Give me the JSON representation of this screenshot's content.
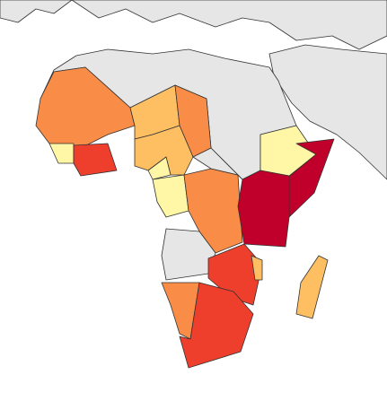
{
  "map": {
    "colors": {
      "sea": "#ffffff",
      "land": "#e6e6e6",
      "border": "#333333",
      "crimson": "#c0002b",
      "red": "#ee3e2c",
      "orange": "#f98c46",
      "light-orange": "#fdbf62",
      "pale": "#fff6a6"
    }
  }
}
